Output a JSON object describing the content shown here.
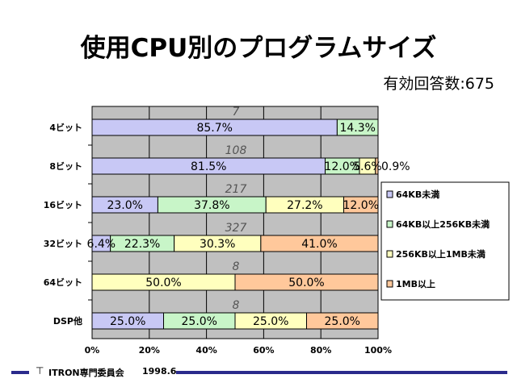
{
  "title": "使用CPU別のプログラムサイズ",
  "responses": "有効回答数:675",
  "footer": {
    "org": "ITRON専門委員会",
    "date": "1998.6"
  },
  "chart_data": {
    "type": "bar",
    "orientation": "horizontal",
    "stacked": "percent",
    "categories": [
      "4ビット",
      "8ビット",
      "16ビット",
      "32ビット",
      "64ビット",
      "DSP他"
    ],
    "counts": [
      "7",
      "108",
      "217",
      "327",
      "8",
      "8"
    ],
    "series": [
      {
        "name": "64KB未満",
        "color": "#c8c8f5",
        "values": [
          85.7,
          81.5,
          23.0,
          6.4,
          0,
          25.0
        ],
        "labels": [
          "85.7%",
          "81.5%",
          "23.0%",
          "6.4%",
          "",
          "25.0%"
        ]
      },
      {
        "name": "64KB以上256KB未満",
        "color": "#c8f5c8",
        "values": [
          14.3,
          12.0,
          37.8,
          22.3,
          0,
          25.0
        ],
        "labels": [
          "14.3%",
          "12.0%",
          "37.8%",
          "22.3%",
          "",
          "25.0%"
        ]
      },
      {
        "name": "256KB以上1MB未満",
        "color": "#ffffbe",
        "values": [
          0,
          5.6,
          27.2,
          30.3,
          50.0,
          25.0
        ],
        "labels": [
          "",
          "5.6%",
          "27.2%",
          "30.3%",
          "50.0%",
          "25.0%"
        ]
      },
      {
        "name": "1MB以上",
        "color": "#ffc89b",
        "values": [
          0,
          0.9,
          12.0,
          41.0,
          50.0,
          25.0
        ],
        "labels": [
          "",
          "0.9%",
          "12.0%",
          "41.0%",
          "50.0%",
          "25.0%"
        ]
      }
    ],
    "xticks": [
      "0%",
      "20%",
      "40%",
      "60%",
      "80%",
      "100%"
    ],
    "xlim": [
      0,
      100
    ],
    "grid": true,
    "legend": "right"
  }
}
